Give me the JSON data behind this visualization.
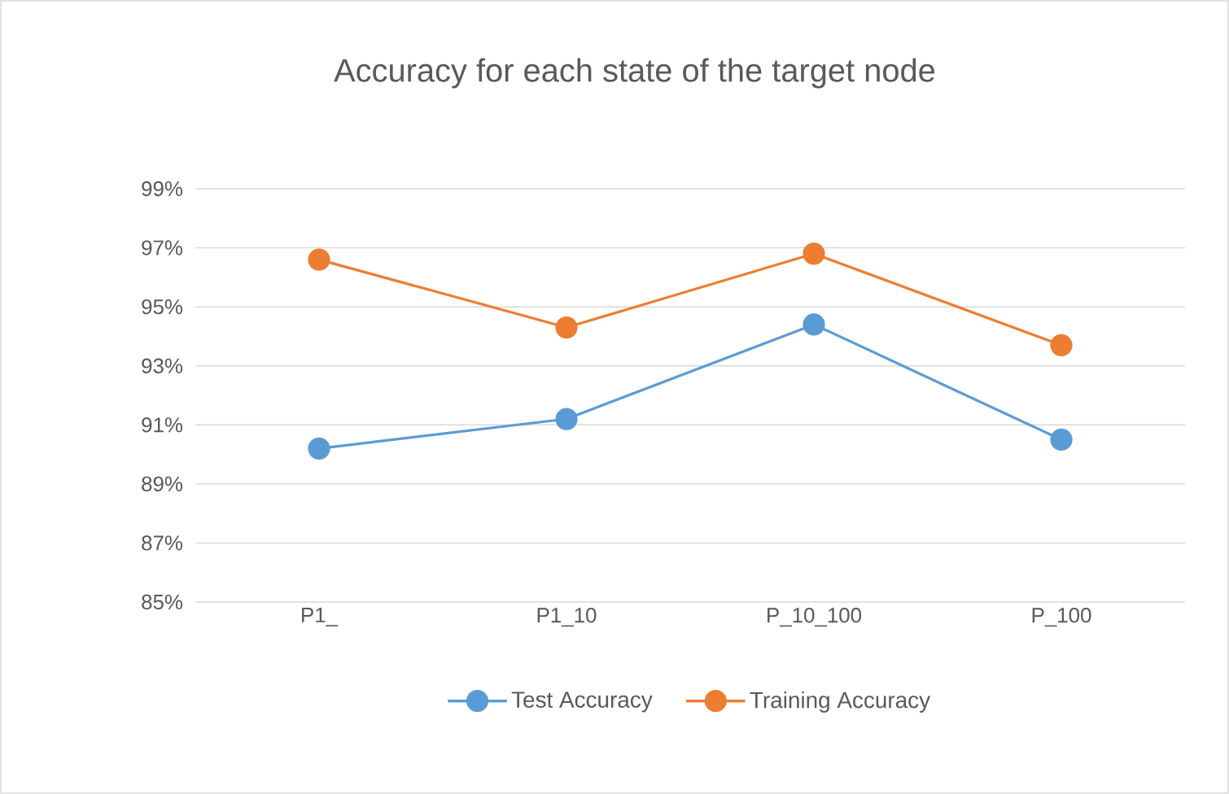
{
  "chart_data": {
    "type": "line",
    "title": "Accuracy for each state of the target node",
    "categories": [
      "P1_",
      "P1_10",
      "P_10_100",
      "P_100"
    ],
    "series": [
      {
        "name": "Test Accuracy",
        "color": "#5b9bd5",
        "values": [
          90.2,
          91.2,
          94.4,
          90.5
        ]
      },
      {
        "name": "Training Accuracy",
        "color": "#ed7d31",
        "values": [
          96.6,
          94.3,
          96.8,
          93.7
        ]
      }
    ],
    "ylim": [
      85,
      99
    ],
    "yticks": [
      {
        "value": 85,
        "label": "85%"
      },
      {
        "value": 87,
        "label": "87%"
      },
      {
        "value": 89,
        "label": "89%"
      },
      {
        "value": 91,
        "label": "91%"
      },
      {
        "value": 93,
        "label": "93%"
      },
      {
        "value": 95,
        "label": "95%"
      },
      {
        "value": 97,
        "label": "97%"
      },
      {
        "value": 99,
        "label": "99%"
      }
    ],
    "grid": "y",
    "legend": "bottom",
    "marker": "circle",
    "line_style": "solid"
  }
}
